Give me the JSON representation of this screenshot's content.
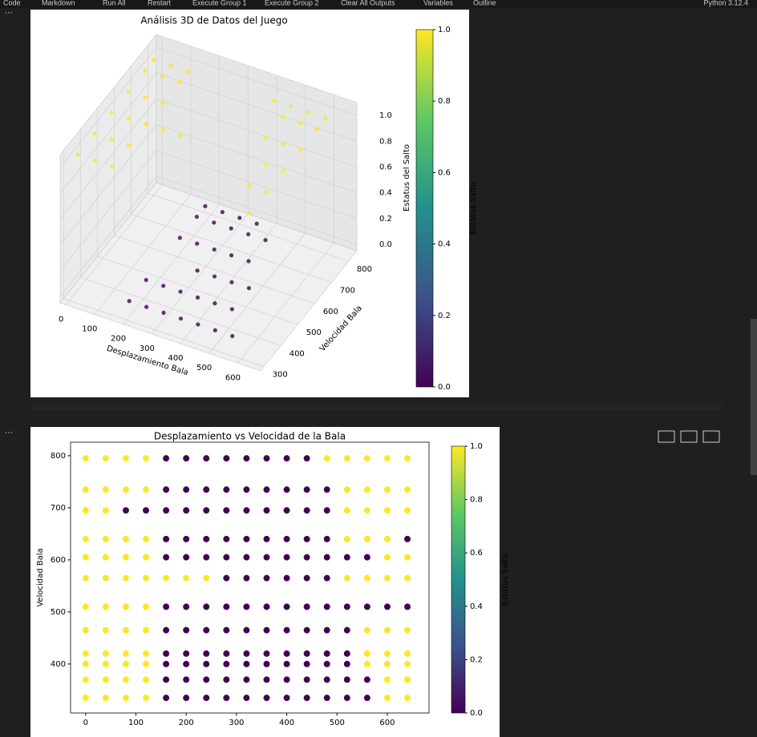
{
  "toolbar": {
    "items": [
      "Code",
      "Markdown",
      "Run All",
      "Restart",
      "Execute Group 1",
      "Execute Group 2",
      "Clear All Outputs",
      "Variables",
      "Outline"
    ],
    "kernel": "Python 3.12.4"
  },
  "chart_data": [
    {
      "type": "scatter3d",
      "title": "Análisis 3D de Datos del Juego",
      "xlabel": "Desplazamiento Bala",
      "ylabel": "Velocidad Bala",
      "zlabel": "Estatus del Salto",
      "xlim": [
        -20,
        680
      ],
      "ylim": [
        280,
        850
      ],
      "zlim": [
        -0.05,
        1.1
      ],
      "xticks": [
        0,
        100,
        200,
        300,
        400,
        500,
        600
      ],
      "yticks": [
        300,
        400,
        500,
        600,
        700,
        800
      ],
      "zticks": [
        {
          "value": 0,
          "label": "0.0"
        },
        {
          "value": 0.2,
          "label": "0.2"
        },
        {
          "value": 0.4,
          "label": "0.4"
        },
        {
          "value": 0.6,
          "label": "0.6"
        },
        {
          "value": 0.8,
          "label": "0.8"
        },
        {
          "value": 1,
          "label": "1.0"
        }
      ],
      "rows": [
        {
          "y": 800,
          "x": [
            0,
            60,
            120,
            180,
            240,
            300,
            360,
            420,
            480,
            540,
            600
          ],
          "status": [
            1,
            1,
            1,
            0,
            0,
            0,
            0,
            1,
            1,
            1,
            1
          ]
        },
        {
          "y": 750,
          "x": [
            0,
            60,
            120,
            180,
            240,
            300,
            360,
            420,
            480,
            540,
            600
          ],
          "status": [
            1,
            1,
            1,
            0,
            0,
            0,
            0,
            0,
            1,
            1,
            1
          ]
        },
        {
          "y": 650,
          "x": [
            0,
            60,
            120,
            180,
            240,
            300,
            360,
            420,
            480,
            540,
            600
          ],
          "status": [
            1,
            1,
            1,
            0,
            0,
            0,
            0,
            0,
            1,
            1,
            1
          ]
        },
        {
          "y": 550,
          "x": [
            0,
            60,
            120,
            180,
            240,
            300,
            360,
            420,
            480,
            540,
            600
          ],
          "status": [
            1,
            1,
            1,
            1,
            1,
            0,
            0,
            0,
            0,
            1,
            1
          ]
        },
        {
          "y": 450,
          "x": [
            0,
            60,
            120,
            180,
            240,
            300,
            360,
            420,
            480,
            540,
            600
          ],
          "status": [
            1,
            1,
            1,
            0,
            0,
            0,
            0,
            0,
            0,
            1,
            1
          ]
        },
        {
          "y": 350,
          "x": [
            0,
            60,
            120,
            180,
            240,
            300,
            360,
            420,
            480,
            540,
            600
          ],
          "status": [
            1,
            1,
            1,
            0,
            0,
            0,
            0,
            0,
            0,
            0,
            1
          ]
        }
      ],
      "colorbar": {
        "label": "Estatus Salto",
        "colors": [
          "#440154",
          "#3b528b",
          "#21918c",
          "#5ec962",
          "#fde725"
        ],
        "lim": [
          0,
          1
        ],
        "ticks": [
          {
            "value": 0,
            "label": "0.0"
          },
          {
            "value": 0.2,
            "label": "0.2"
          },
          {
            "value": 0.4,
            "label": "0.4"
          },
          {
            "value": 0.6,
            "label": "0.6"
          },
          {
            "value": 0.8,
            "label": "0.8"
          },
          {
            "value": 1,
            "label": "1.0"
          }
        ]
      }
    },
    {
      "type": "scatter",
      "title": "Desplazamiento vs Velocidad de la Bala",
      "ylabel": "Velocidad Bala",
      "xlim": [
        -30,
        683
      ],
      "ylim": [
        306,
        826
      ],
      "xticks": [
        0,
        100,
        200,
        300,
        400,
        500,
        600
      ],
      "yticks": [
        400,
        500,
        600,
        700,
        800
      ],
      "rows": [
        {
          "y": 795,
          "x": [
            0,
            40,
            80,
            120,
            160,
            200,
            240,
            280,
            320,
            360,
            400,
            440,
            480,
            520,
            560,
            600,
            640
          ],
          "status": [
            1,
            1,
            1,
            1,
            0,
            0,
            0,
            0,
            0,
            0,
            0,
            0,
            1,
            1,
            1,
            1,
            1
          ]
        },
        {
          "y": 735,
          "x": [
            0,
            40,
            80,
            120,
            160,
            200,
            240,
            280,
            320,
            360,
            400,
            440,
            480,
            520,
            560,
            600,
            640
          ],
          "status": [
            1,
            1,
            1,
            1,
            0,
            0,
            0,
            0,
            0,
            0,
            0,
            0,
            0,
            1,
            1,
            1,
            1
          ]
        },
        {
          "y": 695,
          "x": [
            0,
            40,
            80,
            120,
            160,
            200,
            240,
            280,
            320,
            360,
            400,
            440,
            480,
            520,
            560,
            600,
            640
          ],
          "status": [
            1,
            1,
            0,
            0,
            0,
            0,
            0,
            0,
            0,
            0,
            0,
            0,
            0,
            1,
            1,
            1,
            1
          ]
        },
        {
          "y": 640,
          "x": [
            0,
            40,
            80,
            120,
            160,
            200,
            240,
            280,
            320,
            360,
            400,
            440,
            480,
            520,
            560,
            600,
            640
          ],
          "status": [
            1,
            1,
            1,
            1,
            0,
            0,
            0,
            0,
            0,
            0,
            0,
            0,
            0,
            1,
            1,
            1,
            0
          ]
        },
        {
          "y": 605,
          "x": [
            0,
            40,
            80,
            120,
            160,
            200,
            240,
            280,
            320,
            360,
            400,
            440,
            480,
            520,
            560,
            600,
            640
          ],
          "status": [
            1,
            1,
            1,
            1,
            0,
            0,
            0,
            0,
            0,
            0,
            0,
            0,
            0,
            0,
            0,
            1,
            1
          ]
        },
        {
          "y": 565,
          "x": [
            0,
            40,
            80,
            120,
            160,
            200,
            240,
            280,
            320,
            360,
            400,
            440,
            480,
            520,
            560,
            600,
            640
          ],
          "status": [
            1,
            1,
            1,
            1,
            1,
            1,
            1,
            0,
            0,
            0,
            0,
            0,
            0,
            1,
            1,
            1,
            1
          ]
        },
        {
          "y": 510,
          "x": [
            0,
            40,
            80,
            120,
            160,
            200,
            240,
            280,
            320,
            360,
            400,
            440,
            480,
            520,
            560,
            600,
            640
          ],
          "status": [
            1,
            1,
            1,
            1,
            0,
            0,
            0,
            0,
            0,
            0,
            0,
            0,
            0,
            0,
            0,
            0,
            0
          ]
        },
        {
          "y": 465,
          "x": [
            0,
            40,
            80,
            120,
            160,
            200,
            240,
            280,
            320,
            360,
            400,
            440,
            480,
            520,
            560,
            600,
            640
          ],
          "status": [
            1,
            1,
            1,
            1,
            0,
            0,
            0,
            0,
            0,
            0,
            0,
            0,
            0,
            0,
            1,
            1,
            1
          ]
        },
        {
          "y": 420,
          "x": [
            0,
            40,
            80,
            120,
            160,
            200,
            240,
            280,
            320,
            360,
            400,
            440,
            480,
            520,
            560,
            600,
            640
          ],
          "status": [
            1,
            1,
            1,
            1,
            0,
            0,
            0,
            0,
            0,
            0,
            0,
            0,
            0,
            0,
            1,
            1,
            1
          ]
        },
        {
          "y": 400,
          "x": [
            0,
            40,
            80,
            120,
            160,
            200,
            240,
            280,
            320,
            360,
            400,
            440,
            480,
            520,
            560,
            600,
            640
          ],
          "status": [
            1,
            1,
            1,
            1,
            0,
            0,
            0,
            0,
            0,
            0,
            0,
            0,
            0,
            0,
            1,
            1,
            1
          ]
        },
        {
          "y": 370,
          "x": [
            0,
            40,
            80,
            120,
            160,
            200,
            240,
            280,
            320,
            360,
            400,
            440,
            480,
            520,
            560,
            600,
            640
          ],
          "status": [
            1,
            1,
            1,
            1,
            0,
            0,
            0,
            0,
            0,
            0,
            0,
            0,
            0,
            0,
            0,
            1,
            1
          ]
        },
        {
          "y": 335,
          "x": [
            0,
            40,
            80,
            120,
            160,
            200,
            240,
            280,
            320,
            360,
            400,
            440,
            480,
            520,
            560,
            600,
            640
          ],
          "status": [
            1,
            1,
            1,
            1,
            0,
            0,
            0,
            0,
            0,
            0,
            0,
            0,
            0,
            0,
            0,
            1,
            1
          ]
        }
      ],
      "colorbar": {
        "label": "Estatus Salto",
        "colors": [
          "#440154",
          "#3b528b",
          "#21918c",
          "#5ec962",
          "#fde725"
        ],
        "lim": [
          0,
          1
        ],
        "ticks": [
          {
            "value": 0,
            "label": "0.0"
          },
          {
            "value": 0.2,
            "label": "0.2"
          },
          {
            "value": 0.4,
            "label": "0.4"
          },
          {
            "value": 0.6,
            "label": "0.6"
          },
          {
            "value": 0.8,
            "label": "0.8"
          },
          {
            "value": 1,
            "label": "1.0"
          }
        ]
      }
    }
  ]
}
